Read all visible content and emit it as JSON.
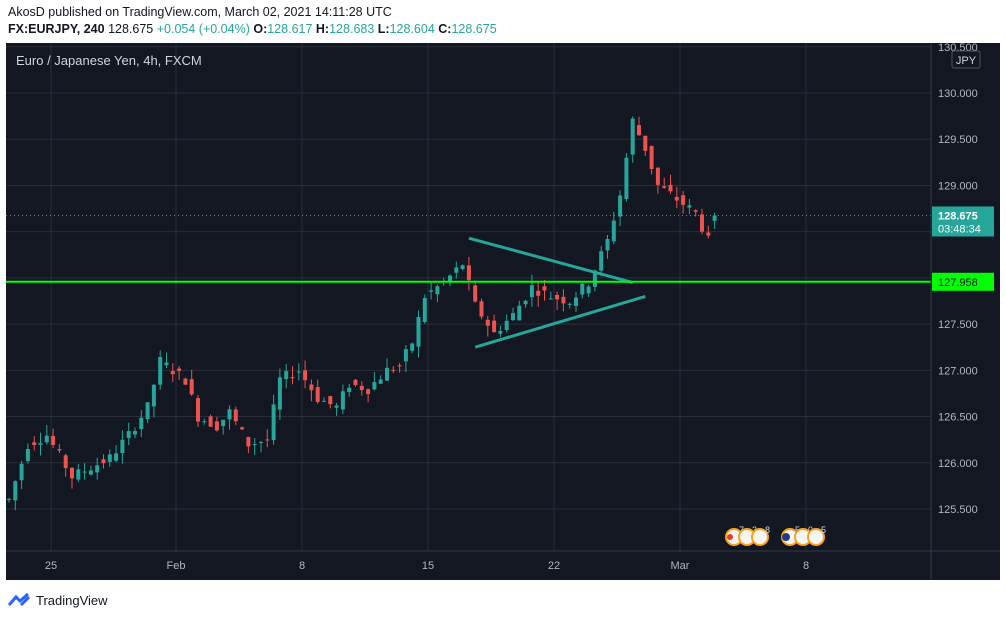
{
  "header": {
    "line1": "AkosD published on TradingView.com, March 02, 2021 14:11:28 UTC",
    "symbol": "FX:EURJPY, 240",
    "last": "128.675",
    "change": "+0.054 (+0.04%)",
    "o_label": "O:",
    "o_value": "128.617",
    "h_label": "H:",
    "h_value": "128.683",
    "l_label": "L:",
    "l_value": "128.604",
    "c_label": "C:",
    "c_value": "128.675"
  },
  "chart_data": {
    "type": "candlestick",
    "title": "Euro / Japanese Yen, 4h, FXCM",
    "currency": "JPY",
    "ylim": [
      125.2,
      130.5
    ],
    "y_ticks": [
      "125.500",
      "126.000",
      "126.500",
      "127.000",
      "127.500",
      "128.000",
      "128.500",
      "129.000",
      "129.500",
      "130.000",
      "130.500"
    ],
    "x_ticks": [
      "25",
      "Feb",
      "8",
      "15",
      "22",
      "Mar",
      "8"
    ],
    "last_price_label": "128.675",
    "countdown_label": "03:48:34",
    "horizontal_line": {
      "value": 127.958,
      "label": "127.958",
      "color": "#00ff00"
    },
    "trendlines": [
      {
        "from": [
          1,
          127.2
        ],
        "to": [
          59,
          127.8
        ],
        "color": "#26a69a"
      },
      {
        "from": [
          1,
          127.25
        ],
        "to": [
          60,
          127.95
        ],
        "color": "#26a69a"
      }
    ],
    "colors": {
      "up": "#26a69a",
      "down": "#ef5350",
      "background": "#131722"
    },
    "event_markers": [
      "7",
      "3",
      "8",
      "5",
      "0",
      "5"
    ],
    "anchors": [
      [
        0,
        125.6
      ],
      [
        3,
        126.2
      ],
      [
        6,
        126.3
      ],
      [
        10,
        125.85
      ],
      [
        16,
        126.05
      ],
      [
        19,
        126.3
      ],
      [
        22,
        126.6
      ],
      [
        24,
        127.1
      ],
      [
        28,
        126.9
      ],
      [
        30,
        126.5
      ],
      [
        33,
        126.4
      ],
      [
        35,
        126.55
      ],
      [
        38,
        126.2
      ],
      [
        41,
        126.25
      ],
      [
        43,
        126.9
      ],
      [
        46,
        127.0
      ],
      [
        49,
        126.7
      ],
      [
        52,
        126.6
      ],
      [
        54,
        126.85
      ],
      [
        57,
        126.8
      ],
      [
        60,
        127.0
      ],
      [
        62,
        127.05
      ],
      [
        64,
        127.3
      ],
      [
        66,
        127.8
      ],
      [
        69,
        127.95
      ],
      [
        72,
        128.15
      ],
      [
        74,
        127.7
      ],
      [
        77,
        127.4
      ],
      [
        80,
        127.6
      ],
      [
        83,
        127.9
      ],
      [
        86,
        127.8
      ],
      [
        89,
        127.75
      ],
      [
        92,
        127.95
      ],
      [
        95,
        128.4
      ],
      [
        97,
        128.9
      ],
      [
        99,
        129.7
      ],
      [
        101,
        129.4
      ],
      [
        103,
        129.0
      ],
      [
        105,
        128.9
      ],
      [
        107,
        128.8
      ],
      [
        109,
        128.7
      ],
      [
        111,
        128.4
      ],
      [
        112,
        128.675
      ]
    ]
  },
  "footer": {
    "brand": "TradingView"
  }
}
